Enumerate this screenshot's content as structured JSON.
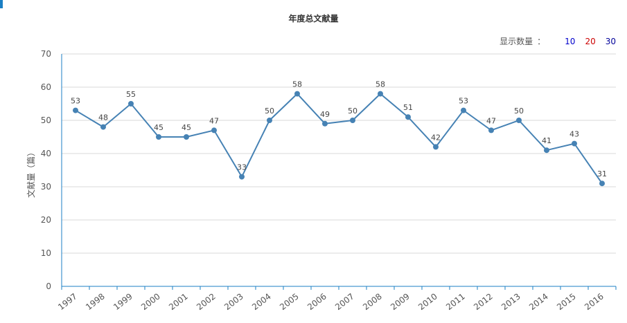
{
  "chart_data": {
    "type": "line",
    "title": "年度总文献量",
    "xlabel": "",
    "ylabel": "文献量（篇）",
    "categories": [
      "1997",
      "1998",
      "1999",
      "2000",
      "2001",
      "2002",
      "2003",
      "2004",
      "2005",
      "2006",
      "2007",
      "2008",
      "2009",
      "2010",
      "2011",
      "2012",
      "2013",
      "2014",
      "2015",
      "2016"
    ],
    "series": [
      {
        "values": [
          53,
          48,
          55,
          45,
          45,
          47,
          33,
          50,
          58,
          49,
          50,
          58,
          51,
          42,
          53,
          47,
          50,
          41,
          43,
          31
        ]
      }
    ],
    "ylim": [
      0,
      70
    ],
    "yticks": [
      0,
      10,
      20,
      30,
      40,
      50,
      60,
      70
    ],
    "grid": true,
    "line_color": "#4682b4",
    "gridline_color": "#d9d9d9",
    "axis_color": "#1b7fc4"
  },
  "display_count": {
    "label": "显示数量",
    "colon": "：",
    "options": [
      {
        "label": "10",
        "color": "#0000cc"
      },
      {
        "label": "20",
        "color": "#cc0000"
      },
      {
        "label": "30",
        "color": "#000099"
      }
    ]
  }
}
